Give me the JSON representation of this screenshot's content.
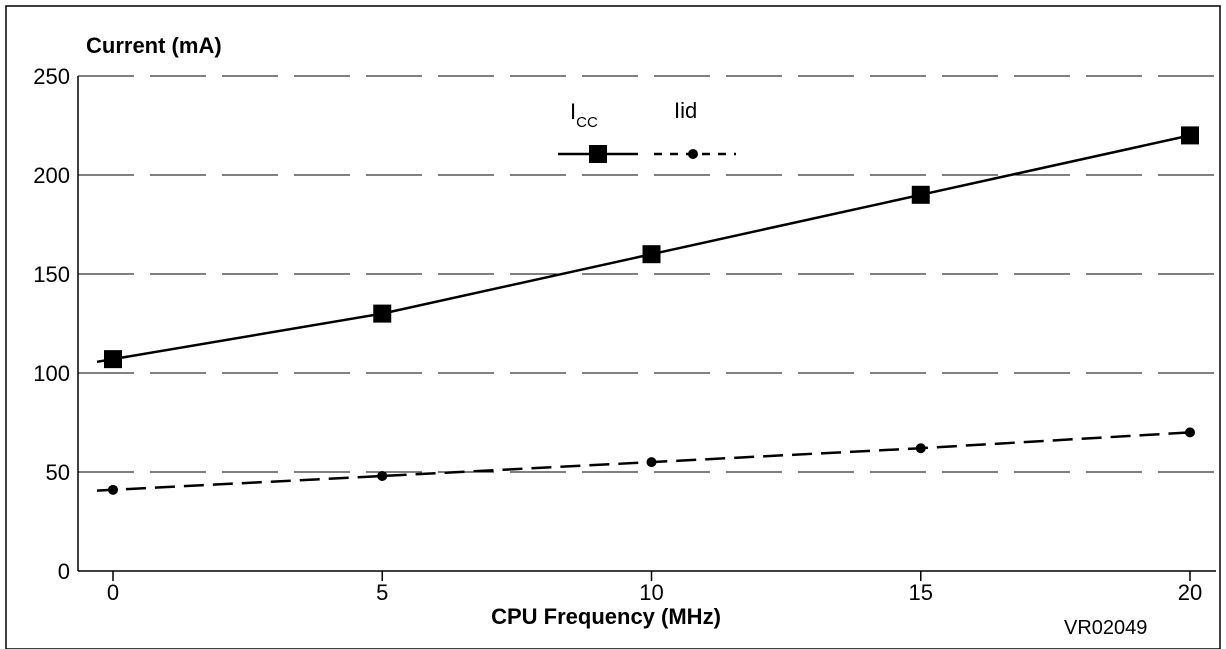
{
  "chart_data": {
    "type": "line",
    "title": "",
    "xlabel": "CPU Frequency (MHz)",
    "ylabel": "Current (mA)",
    "x": [
      0,
      5,
      10,
      15,
      20
    ],
    "x_ticks": [
      "0",
      "5",
      "10",
      "15",
      "20"
    ],
    "y_ticks": [
      "0",
      "50",
      "100",
      "150",
      "200",
      "250"
    ],
    "xlim": [
      -0.5,
      20.3
    ],
    "ylim": [
      0,
      250
    ],
    "grid": "horizontal dashed",
    "legend_position": "top-center",
    "series": [
      {
        "name": "I",
        "name_subscript": "CC",
        "values": [
          107,
          130,
          160,
          190,
          220
        ],
        "marker": "square",
        "line": "solid",
        "color": "#000000"
      },
      {
        "name": "Iid",
        "values": [
          41,
          48,
          55,
          62,
          70
        ],
        "marker": "circle",
        "line": "dashed",
        "color": "#000000"
      }
    ],
    "annotation": "VR02049"
  }
}
